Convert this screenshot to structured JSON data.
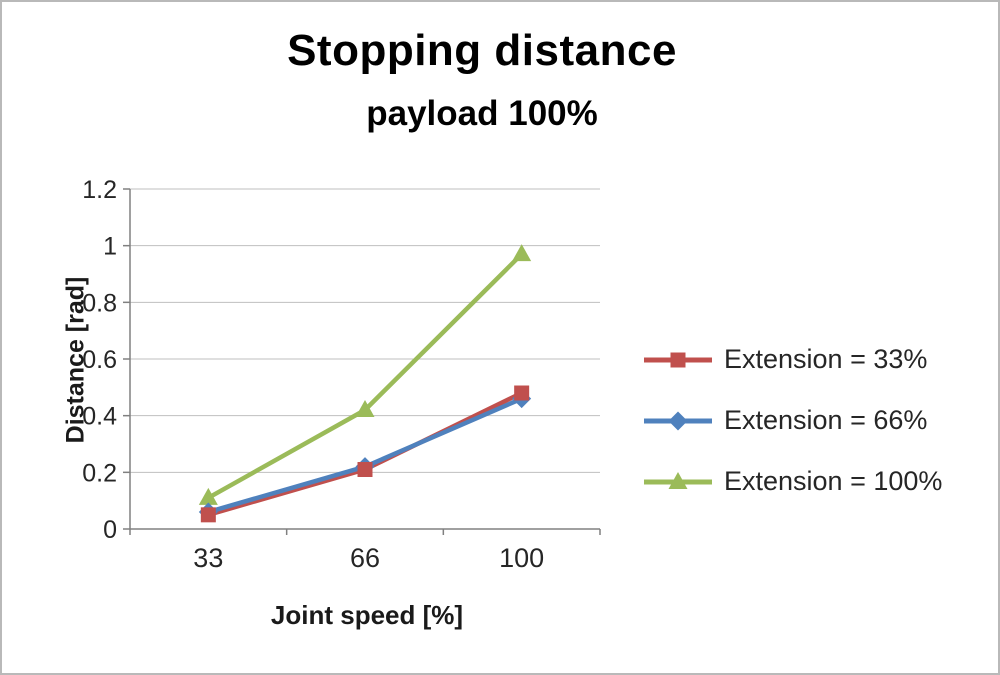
{
  "chart_data": {
    "type": "line",
    "title": "Stopping distance",
    "subtitle": "payload 100%",
    "xlabel": "Joint speed [%]",
    "ylabel": "Distance [rad]",
    "categories": [
      "33",
      "66",
      "100"
    ],
    "ylim": [
      0,
      1.2
    ],
    "yticks": [
      0,
      0.2,
      0.4,
      0.6,
      0.8,
      1,
      1.2
    ],
    "ytick_labels": [
      "0",
      "0.2",
      "0.4",
      "0.6",
      "0.8",
      "1",
      "1.2"
    ],
    "grid": true,
    "legend_position": "right",
    "series": [
      {
        "name": "Extension = 33%",
        "values": [
          0.05,
          0.21,
          0.48
        ],
        "color": "#C0504D",
        "marker": "square"
      },
      {
        "name": "Extension = 66%",
        "values": [
          0.06,
          0.22,
          0.46
        ],
        "color": "#4F81BD",
        "marker": "diamond"
      },
      {
        "name": "Extension = 100%",
        "values": [
          0.11,
          0.42,
          0.97
        ],
        "color": "#9BBB59",
        "marker": "triangle"
      }
    ]
  },
  "colors": {
    "grid": "#BFBFBF",
    "axis": "#808080",
    "tick_text": "#262626",
    "border": "#B9B9B9"
  }
}
